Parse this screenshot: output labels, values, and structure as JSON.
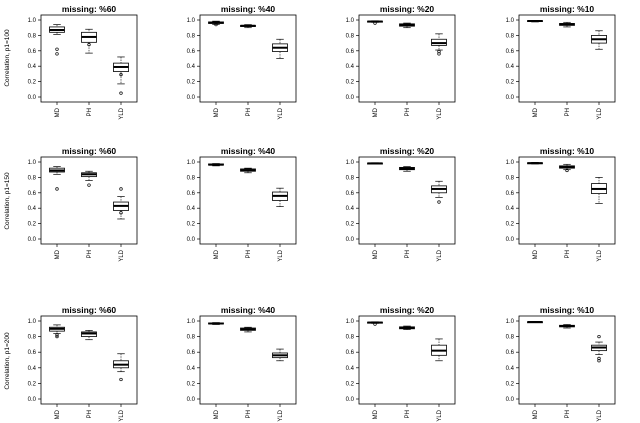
{
  "figure": {
    "row_labels": [
      "Correlation, p1=100",
      "Correlation, p1=150",
      "Correlation, p1=200"
    ],
    "col_titles": [
      "missing: %60",
      "missing: %40",
      "missing: %20",
      "missing: %10"
    ]
  },
  "chart_data": [
    {
      "type": "box",
      "row": 0,
      "col": 0,
      "title": "missing: %60",
      "ylabel": "Correlation, p1=100",
      "categories": [
        "MD",
        "PH",
        "YLD"
      ],
      "ylim": [
        0,
        1
      ],
      "yticks": [
        "0.0",
        "0.2",
        "0.4",
        "0.6",
        "0.8",
        "1.0"
      ],
      "boxes": [
        {
          "min": 0.81,
          "q1": 0.84,
          "median": 0.87,
          "q3": 0.91,
          "max": 0.94,
          "outliers": [
            0.62,
            0.56
          ]
        },
        {
          "min": 0.57,
          "q1": 0.71,
          "median": 0.78,
          "q3": 0.84,
          "max": 0.88,
          "outliers": [
            0.68
          ]
        },
        {
          "min": 0.17,
          "q1": 0.33,
          "median": 0.39,
          "q3": 0.44,
          "max": 0.52,
          "outliers": [
            0.05,
            0.29
          ]
        }
      ]
    },
    {
      "type": "box",
      "row": 0,
      "col": 1,
      "title": "missing: %40",
      "ylabel": "",
      "categories": [
        "MD",
        "PH",
        "YLD"
      ],
      "ylim": [
        0,
        1
      ],
      "yticks": [
        "0.0",
        "0.2",
        "0.4",
        "0.6",
        "0.8",
        "1.0"
      ],
      "boxes": [
        {
          "min": 0.94,
          "q1": 0.955,
          "median": 0.965,
          "q3": 0.975,
          "max": 0.985,
          "outliers": [
            0.94
          ]
        },
        {
          "min": 0.9,
          "q1": 0.915,
          "median": 0.925,
          "q3": 0.93,
          "max": 0.94,
          "outliers": []
        },
        {
          "min": 0.5,
          "q1": 0.59,
          "median": 0.64,
          "q3": 0.69,
          "max": 0.75,
          "outliers": []
        }
      ]
    },
    {
      "type": "box",
      "row": 0,
      "col": 2,
      "title": "missing: %20",
      "ylabel": "",
      "categories": [
        "MD",
        "PH",
        "YLD"
      ],
      "ylim": [
        0,
        1
      ],
      "yticks": [
        "0.0",
        "0.2",
        "0.4",
        "0.6",
        "0.8",
        "1.0"
      ],
      "boxes": [
        {
          "min": 0.97,
          "q1": 0.975,
          "median": 0.98,
          "q3": 0.985,
          "max": 0.99,
          "outliers": [
            0.96
          ]
        },
        {
          "min": 0.9,
          "q1": 0.92,
          "median": 0.935,
          "q3": 0.95,
          "max": 0.96,
          "outliers": []
        },
        {
          "min": 0.61,
          "q1": 0.67,
          "median": 0.7,
          "q3": 0.75,
          "max": 0.82,
          "outliers": [
            0.56,
            0.59
          ]
        }
      ]
    },
    {
      "type": "box",
      "row": 0,
      "col": 3,
      "title": "missing: %10",
      "ylabel": "",
      "categories": [
        "MD",
        "PH",
        "YLD"
      ],
      "ylim": [
        0,
        1
      ],
      "yticks": [
        "0.0",
        "0.2",
        "0.4",
        "0.6",
        "0.8",
        "1.0"
      ],
      "boxes": [
        {
          "min": 0.975,
          "q1": 0.982,
          "median": 0.987,
          "q3": 0.992,
          "max": 0.995,
          "outliers": []
        },
        {
          "min": 0.91,
          "q1": 0.93,
          "median": 0.945,
          "q3": 0.955,
          "max": 0.97,
          "outliers": []
        },
        {
          "min": 0.62,
          "q1": 0.7,
          "median": 0.75,
          "q3": 0.8,
          "max": 0.86,
          "outliers": []
        }
      ]
    },
    {
      "type": "box",
      "row": 1,
      "col": 0,
      "title": "missing: %60",
      "ylabel": "Correlation, p1=150",
      "categories": [
        "MD",
        "PH",
        "YLD"
      ],
      "ylim": [
        0,
        1
      ],
      "yticks": [
        "0.0",
        "0.2",
        "0.4",
        "0.6",
        "0.8",
        "1.0"
      ],
      "boxes": [
        {
          "min": 0.84,
          "q1": 0.87,
          "median": 0.89,
          "q3": 0.92,
          "max": 0.94,
          "outliers": [
            0.65
          ]
        },
        {
          "min": 0.76,
          "q1": 0.81,
          "median": 0.84,
          "q3": 0.86,
          "max": 0.88,
          "outliers": [
            0.7
          ]
        },
        {
          "min": 0.26,
          "q1": 0.37,
          "median": 0.43,
          "q3": 0.48,
          "max": 0.55,
          "outliers": [
            0.65,
            0.34
          ]
        }
      ]
    },
    {
      "type": "box",
      "row": 1,
      "col": 1,
      "title": "missing: %40",
      "ylabel": "",
      "categories": [
        "MD",
        "PH",
        "YLD"
      ],
      "ylim": [
        0,
        1
      ],
      "yticks": [
        "0.0",
        "0.2",
        "0.4",
        "0.6",
        "0.8",
        "1.0"
      ],
      "boxes": [
        {
          "min": 0.95,
          "q1": 0.96,
          "median": 0.965,
          "q3": 0.975,
          "max": 0.98,
          "outliers": []
        },
        {
          "min": 0.86,
          "q1": 0.88,
          "median": 0.895,
          "q3": 0.91,
          "max": 0.92,
          "outliers": []
        },
        {
          "min": 0.42,
          "q1": 0.5,
          "median": 0.56,
          "q3": 0.61,
          "max": 0.66,
          "outliers": []
        }
      ]
    },
    {
      "type": "box",
      "row": 1,
      "col": 2,
      "title": "missing: %20",
      "ylabel": "",
      "categories": [
        "MD",
        "PH",
        "YLD"
      ],
      "ylim": [
        0,
        1
      ],
      "yticks": [
        "0.0",
        "0.2",
        "0.4",
        "0.6",
        "0.8",
        "1.0"
      ],
      "boxes": [
        {
          "min": 0.975,
          "q1": 0.978,
          "median": 0.982,
          "q3": 0.986,
          "max": 0.99,
          "outliers": []
        },
        {
          "min": 0.88,
          "q1": 0.9,
          "median": 0.915,
          "q3": 0.93,
          "max": 0.94,
          "outliers": []
        },
        {
          "min": 0.54,
          "q1": 0.6,
          "median": 0.65,
          "q3": 0.69,
          "max": 0.75,
          "outliers": [
            0.48
          ]
        }
      ]
    },
    {
      "type": "box",
      "row": 1,
      "col": 3,
      "title": "missing: %10",
      "ylabel": "",
      "categories": [
        "MD",
        "PH",
        "YLD"
      ],
      "ylim": [
        0,
        1
      ],
      "yticks": [
        "0.0",
        "0.2",
        "0.4",
        "0.6",
        "0.8",
        "1.0"
      ],
      "boxes": [
        {
          "min": 0.975,
          "q1": 0.98,
          "median": 0.985,
          "q3": 0.99,
          "max": 0.995,
          "outliers": []
        },
        {
          "min": 0.9,
          "q1": 0.92,
          "median": 0.935,
          "q3": 0.95,
          "max": 0.97,
          "outliers": [
            0.89
          ]
        },
        {
          "min": 0.46,
          "q1": 0.59,
          "median": 0.65,
          "q3": 0.72,
          "max": 0.8,
          "outliers": []
        }
      ]
    },
    {
      "type": "box",
      "row": 2,
      "col": 0,
      "title": "missing: %60",
      "ylabel": "Correlation, p1=200",
      "categories": [
        "MD",
        "PH",
        "YLD"
      ],
      "ylim": [
        0,
        1
      ],
      "yticks": [
        "0.0",
        "0.2",
        "0.4",
        "0.6",
        "0.8",
        "1.0"
      ],
      "boxes": [
        {
          "min": 0.84,
          "q1": 0.87,
          "median": 0.9,
          "q3": 0.92,
          "max": 0.95,
          "outliers": [
            0.8,
            0.82
          ]
        },
        {
          "min": 0.76,
          "q1": 0.8,
          "median": 0.84,
          "q3": 0.86,
          "max": 0.88,
          "outliers": []
        },
        {
          "min": 0.35,
          "q1": 0.4,
          "median": 0.44,
          "q3": 0.49,
          "max": 0.58,
          "outliers": [
            0.25
          ]
        }
      ]
    },
    {
      "type": "box",
      "row": 2,
      "col": 1,
      "title": "missing: %40",
      "ylabel": "",
      "categories": [
        "MD",
        "PH",
        "YLD"
      ],
      "ylim": [
        0,
        1
      ],
      "yticks": [
        "0.0",
        "0.2",
        "0.4",
        "0.6",
        "0.8",
        "1.0"
      ],
      "boxes": [
        {
          "min": 0.955,
          "q1": 0.962,
          "median": 0.968,
          "q3": 0.975,
          "max": 0.98,
          "outliers": []
        },
        {
          "min": 0.86,
          "q1": 0.88,
          "median": 0.895,
          "q3": 0.91,
          "max": 0.92,
          "outliers": []
        },
        {
          "min": 0.49,
          "q1": 0.53,
          "median": 0.56,
          "q3": 0.59,
          "max": 0.64,
          "outliers": []
        }
      ]
    },
    {
      "type": "box",
      "row": 2,
      "col": 2,
      "title": "missing: %20",
      "ylabel": "",
      "categories": [
        "MD",
        "PH",
        "YLD"
      ],
      "ylim": [
        0,
        1
      ],
      "yticks": [
        "0.0",
        "0.2",
        "0.4",
        "0.6",
        "0.8",
        "1.0"
      ],
      "boxes": [
        {
          "min": 0.97,
          "q1": 0.975,
          "median": 0.98,
          "q3": 0.985,
          "max": 0.99,
          "outliers": [
            0.96
          ]
        },
        {
          "min": 0.89,
          "q1": 0.9,
          "median": 0.915,
          "q3": 0.925,
          "max": 0.935,
          "outliers": []
        },
        {
          "min": 0.49,
          "q1": 0.56,
          "median": 0.62,
          "q3": 0.69,
          "max": 0.77,
          "outliers": []
        }
      ]
    },
    {
      "type": "box",
      "row": 2,
      "col": 3,
      "title": "missing: %10",
      "ylabel": "",
      "categories": [
        "MD",
        "PH",
        "YLD"
      ],
      "ylim": [
        0,
        1
      ],
      "yticks": [
        "0.0",
        "0.2",
        "0.4",
        "0.6",
        "0.8",
        "1.0"
      ],
      "boxes": [
        {
          "min": 0.98,
          "q1": 0.983,
          "median": 0.987,
          "q3": 0.99,
          "max": 0.993,
          "outliers": []
        },
        {
          "min": 0.91,
          "q1": 0.925,
          "median": 0.935,
          "q3": 0.945,
          "max": 0.955,
          "outliers": []
        },
        {
          "min": 0.57,
          "q1": 0.62,
          "median": 0.66,
          "q3": 0.69,
          "max": 0.73,
          "outliers": [
            0.49,
            0.52,
            0.8
          ]
        }
      ]
    }
  ]
}
